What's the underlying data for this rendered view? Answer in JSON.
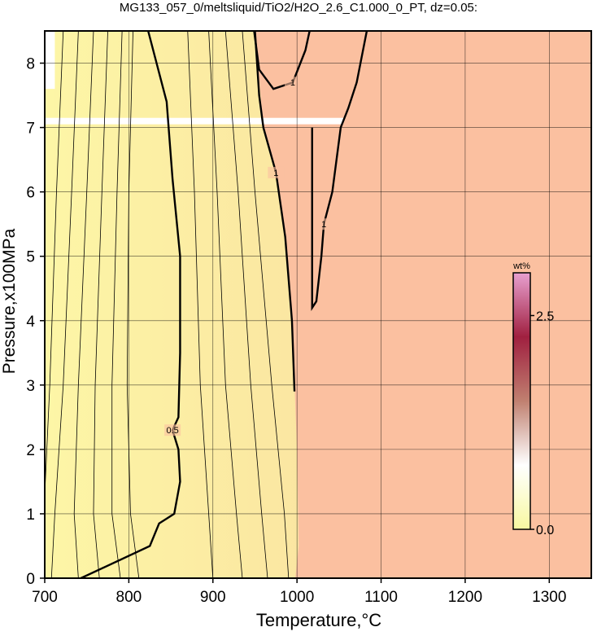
{
  "chart_data": {
    "type": "contour",
    "title": "MG133_057_0/meltsliquid/TiO2/H2O_2.6_C1.000_0_PT, dz=0.05:",
    "x_label": "Temperature,°C",
    "y_label": "Pressure,x100MPa",
    "xlim": [
      700,
      1350
    ],
    "ylim": [
      0,
      8.5
    ],
    "xticks": [
      700,
      800,
      900,
      1000,
      1100,
      1200,
      1300
    ],
    "yticks": [
      0,
      1,
      2,
      3,
      4,
      5,
      6,
      7,
      8
    ],
    "grid": true,
    "low_fill": [
      "#fdf6a6",
      "#f8d49c"
    ],
    "high_fill": "#fbc0a0",
    "high_region": {
      "x": [
        950,
        960,
        975,
        986,
        994,
        997,
        1000,
        1002,
        998,
        1350,
        1350
      ],
      "y": [
        8.5,
        7.0,
        6.3,
        5.3,
        4.0,
        3.0,
        2.0,
        0.5,
        0,
        0,
        8.5
      ]
    },
    "no_data": [
      {
        "x": [
          700,
          1055
        ],
        "y": [
          7.05,
          7.15
        ]
      },
      {
        "x": [
          700,
          712
        ],
        "y": [
          7.6,
          8.5
        ]
      }
    ],
    "contours": [
      {
        "level": 0.5,
        "bold": true,
        "x": [
          823,
          845,
          852,
          861,
          861,
          859,
          852,
          859,
          861,
          854,
          836,
          825,
          743
        ],
        "y": [
          8.5,
          7.4,
          6.2,
          5.0,
          3.5,
          2.5,
          2.3,
          2.0,
          1.5,
          1.0,
          0.85,
          0.5,
          0
        ]
      },
      {
        "level": 1,
        "bold": true,
        "x": [
          950,
          955,
          960,
          975,
          986,
          994,
          997
        ],
        "y": [
          8.5,
          7.5,
          7.0,
          6.3,
          5.3,
          4.0,
          2.9
        ]
      },
      {
        "level": 1,
        "bold": true,
        "x": [
          949,
          955,
          972,
          995,
          1010,
          1015
        ],
        "y": [
          8.5,
          7.9,
          7.6,
          7.7,
          8.2,
          8.5
        ]
      },
      {
        "level": 1,
        "bold": true,
        "x": [
          1083,
          1071,
          1061,
          1052,
          1042,
          1032,
          1029,
          1023,
          1018,
          1018,
          1018
        ],
        "y": [
          8.5,
          7.7,
          7.3,
          7.0,
          6.0,
          5.5,
          5.0,
          4.3,
          4.2,
          5.5,
          7.0
        ]
      },
      {
        "level": 0.1,
        "bold": false,
        "x": [
          722,
          714,
          706,
          700
        ],
        "y": [
          8.5,
          6.0,
          3.0,
          1.3
        ]
      },
      {
        "level": 0.15,
        "bold": false,
        "x": [
          740,
          732,
          722,
          712,
          708
        ],
        "y": [
          8.5,
          6.0,
          3.0,
          1.0,
          0
        ]
      },
      {
        "level": 0.2,
        "bold": false,
        "x": [
          758,
          750,
          740,
          735,
          740
        ],
        "y": [
          8.5,
          6.0,
          3.0,
          1.0,
          0
        ]
      },
      {
        "level": 0.25,
        "bold": false,
        "x": [
          775,
          768,
          760,
          758,
          765
        ],
        "y": [
          8.5,
          6.0,
          3.0,
          1.0,
          0
        ]
      },
      {
        "level": 0.3,
        "bold": false,
        "x": [
          792,
          786,
          780,
          780,
          790
        ],
        "y": [
          8.5,
          6.0,
          3.0,
          1.0,
          0
        ]
      },
      {
        "level": 0.35,
        "bold": false,
        "x": [
          805,
          800,
          798,
          802,
          812
        ],
        "y": [
          8.5,
          6.0,
          3.0,
          1.0,
          0
        ]
      },
      {
        "level": 0.6,
        "bold": false,
        "x": [
          870,
          878,
          885,
          895,
          900
        ],
        "y": [
          8.5,
          6.0,
          3.0,
          1.0,
          0
        ]
      },
      {
        "level": 0.7,
        "bold": false,
        "x": [
          895,
          905,
          915,
          928,
          935
        ],
        "y": [
          8.5,
          6.0,
          3.0,
          1.0,
          0
        ]
      },
      {
        "level": 0.8,
        "bold": false,
        "x": [
          915,
          930,
          945,
          958,
          965
        ],
        "y": [
          8.5,
          6.0,
          3.0,
          1.0,
          0
        ]
      },
      {
        "level": 0.9,
        "bold": false,
        "x": [
          935,
          950,
          970,
          985,
          990
        ],
        "y": [
          8.5,
          6.0,
          3.0,
          1.0,
          0
        ]
      }
    ],
    "colorbar": {
      "label": "wt%",
      "lim": [
        0,
        3
      ],
      "ticks": [
        {
          "value": 0,
          "label": "0.0"
        },
        2.5
      ],
      "colors": [
        "#f8f8a0",
        "#ffffff",
        "#c08070",
        "#a02040",
        "#e8a0d0"
      ]
    }
  }
}
